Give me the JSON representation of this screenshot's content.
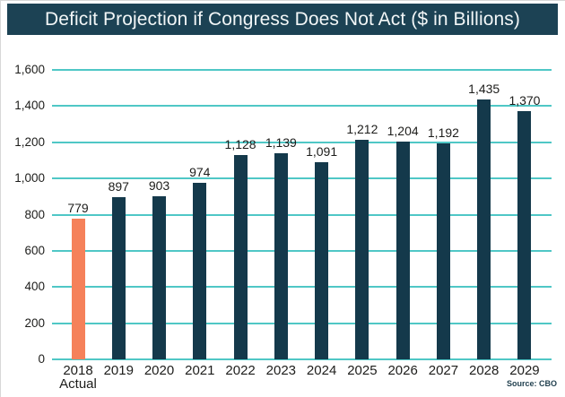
{
  "title_banner": {
    "text": "Deficit Projection if Congress Does Not Act ($ in Billions)"
  },
  "source_note": "Source: CBO",
  "colors": {
    "banner_bg": "#1c4254",
    "banner_text": "#f2f6f7",
    "bar": "#14394b",
    "bar_highlight": "#f5815a",
    "gridline": "#4fc7c6",
    "axis_text": "#1d1d1b",
    "source_text": "#1f3e4d"
  },
  "chart_data": {
    "type": "bar",
    "title": "Deficit Projection if Congress Does Not Act ($ in Billions)",
    "categories": [
      {
        "label": "2018",
        "sublabel": "Actual"
      },
      {
        "label": "2019"
      },
      {
        "label": "2020"
      },
      {
        "label": "2021"
      },
      {
        "label": "2022"
      },
      {
        "label": "2023"
      },
      {
        "label": "2024"
      },
      {
        "label": "2025"
      },
      {
        "label": "2026"
      },
      {
        "label": "2027"
      },
      {
        "label": "2028"
      },
      {
        "label": "2029"
      }
    ],
    "values": [
      779,
      897,
      903,
      974,
      1128,
      1139,
      1091,
      1212,
      1204,
      1192,
      1435,
      1370
    ],
    "value_labels": [
      "779",
      "897",
      "903",
      "974",
      "1,128",
      "1,139",
      "1,091",
      "1,212",
      "1,204",
      "1,192",
      "1,435",
      "1,370"
    ],
    "highlight_index": 0,
    "highlight_meaning": "actual-year-bar",
    "xlabel": "",
    "ylabel": "",
    "ylim": [
      0,
      1600
    ],
    "ytick_step": 200,
    "ytick_labels": [
      "0",
      "200",
      "400",
      "600",
      "800",
      "1,000",
      "1,200",
      "1,400",
      "1,600"
    ],
    "grid": true,
    "legend": false,
    "source": "Source: CBO"
  }
}
